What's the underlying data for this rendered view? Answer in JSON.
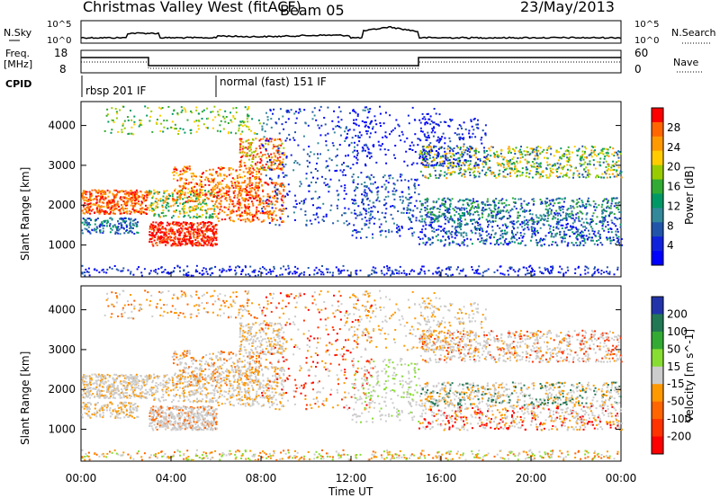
{
  "header": {
    "station": "Christmas Valley West (fitACF)",
    "beam": "Beam 05",
    "date": "23/May/2013"
  },
  "noise_panel": {
    "left_label": "N.Sky",
    "right_label": "N.Search",
    "left_ticks": [
      "10^5",
      "10^0"
    ],
    "right_ticks": [
      "10^5",
      "10^0"
    ]
  },
  "freq_panel": {
    "left_label_line1": "Freq.",
    "left_label_line2": "[MHz]",
    "right_label": "Nave",
    "left_ticks": [
      "18",
      "8"
    ],
    "right_ticks": [
      "60",
      "0"
    ]
  },
  "cpid": {
    "label": "CPID",
    "segments": [
      {
        "text": "rbsp 201 IF",
        "start_hour": 0
      },
      {
        "text": "normal (fast) 151 IF",
        "start_hour": 6
      }
    ]
  },
  "colorbars": {
    "power": {
      "label": "Power [dB]",
      "ticks": [
        "28",
        "24",
        "20",
        "16",
        "12",
        "8",
        "4"
      ],
      "colors": [
        "#ff0000",
        "#ff6600",
        "#ff9900",
        "#ffcc00",
        "#99cc00",
        "#33aa33",
        "#009966",
        "#338899",
        "#2255aa",
        "#1122dd",
        "#0000ff"
      ]
    },
    "velocity": {
      "label": "Velocity [m s^-1]",
      "ticks": [
        "200",
        "100",
        "50",
        "15",
        "-15",
        "-50",
        "-100",
        "-200"
      ],
      "colors": [
        "#2233aa",
        "#227755",
        "#33aa33",
        "#88dd33",
        "#cccccc",
        "#ff9900",
        "#ff6600",
        "#ff3300",
        "#ff0000"
      ]
    }
  },
  "chart_data": [
    {
      "type": "heatmap",
      "name": "power",
      "ylabel": "Slant Range [km]",
      "ylim": [
        200,
        4600
      ],
      "yticks": [
        "4000",
        "3000",
        "2000",
        "1000"
      ],
      "xlim": [
        0,
        24
      ]
    },
    {
      "type": "heatmap",
      "name": "velocity",
      "ylabel": "Slant Range [km]",
      "ylim": [
        200,
        4600
      ],
      "yticks": [
        "4000",
        "3000",
        "2000",
        "1000"
      ],
      "xlabel": "Time UT",
      "xticks": [
        "00:00",
        "04:00",
        "08:00",
        "12:00",
        "16:00",
        "20:00",
        "00:00"
      ],
      "xlim": [
        0,
        24
      ]
    }
  ]
}
